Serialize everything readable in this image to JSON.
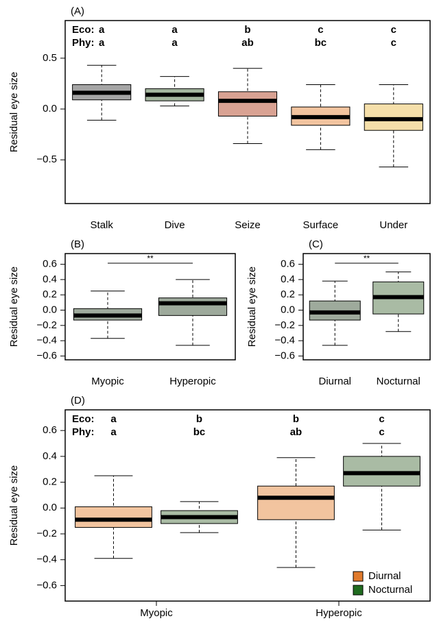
{
  "chart_data": [
    {
      "type": "box",
      "panel": "(A)",
      "ylabel": "Residual eye size",
      "categories": [
        "Stalk",
        "Dive",
        "Seize",
        "Surface",
        "Under"
      ],
      "box_colors": [
        "#a5a5a5",
        "#a3b59e",
        "#d9a293",
        "#f2c49f",
        "#f5dfaa"
      ],
      "series": [
        {
          "q1": [
            0.09,
            0.08,
            -0.07,
            -0.16,
            -0.21
          ],
          "median": [
            0.16,
            0.14,
            0.08,
            -0.08,
            -0.1
          ],
          "q3": [
            0.24,
            0.2,
            0.17,
            0.02,
            0.05
          ],
          "whisker_low": [
            -0.11,
            0.03,
            -0.34,
            -0.4,
            -0.57
          ],
          "whisker_high": [
            0.43,
            0.32,
            0.4,
            0.24,
            0.24
          ]
        }
      ],
      "letter_rows": [
        {
          "label": "Eco:",
          "letters": [
            "a",
            "a",
            "b",
            "c",
            "c"
          ]
        },
        {
          "label": "Phy:",
          "letters": [
            "a",
            "a",
            "ab",
            "bc",
            "c"
          ]
        }
      ],
      "ylim": [
        -0.93,
        0.87
      ],
      "yticks": [
        {
          "value": -0.5,
          "label": "−0.5"
        },
        {
          "value": 0,
          "label": "0.0"
        },
        0.5
      ]
    },
    {
      "type": "box",
      "panel": "(B)",
      "ylabel": "Residual eye size",
      "categories": [
        "Myopic",
        "Hyperopic"
      ],
      "box_colors": [
        "#9eaa9c",
        "#9eaa9c"
      ],
      "series": [
        {
          "q1": [
            -0.13,
            -0.07
          ],
          "median": [
            -0.07,
            0.09
          ],
          "q3": [
            0.02,
            0.16
          ],
          "whisker_low": [
            -0.37,
            -0.46
          ],
          "whisker_high": [
            0.25,
            0.4
          ]
        }
      ],
      "significance": "**",
      "ylim": [
        -0.65,
        0.74
      ],
      "yticks": [
        {
          "value": -0.6,
          "label": "−0.6"
        },
        {
          "value": -0.4,
          "label": "−0.4"
        },
        {
          "value": -0.2,
          "label": "−0.2"
        },
        {
          "value": 0,
          "label": "0.0"
        },
        0.2,
        0.4,
        0.6
      ]
    },
    {
      "type": "box",
      "panel": "(C)",
      "ylabel": "Residual eye size",
      "categories": [
        "Diurnal",
        "Nocturnal"
      ],
      "box_colors": [
        "#9eaa9c",
        "#a9bba4"
      ],
      "series": [
        {
          "q1": [
            -0.13,
            -0.05
          ],
          "median": [
            -0.03,
            0.17
          ],
          "q3": [
            0.12,
            0.37
          ],
          "whisker_low": [
            -0.46,
            -0.28
          ],
          "whisker_high": [
            0.38,
            0.5
          ]
        }
      ],
      "significance": "**",
      "ylim": [
        -0.65,
        0.74
      ],
      "yticks": [
        {
          "value": -0.6,
          "label": "−0.6"
        },
        {
          "value": -0.4,
          "label": "−0.4"
        },
        {
          "value": -0.2,
          "label": "−0.2"
        },
        {
          "value": 0,
          "label": "0.0"
        },
        0.2,
        0.4,
        0.6
      ]
    },
    {
      "type": "box",
      "panel": "(D)",
      "ylabel": "Residual eye size",
      "categories": [
        "Myopic",
        "Hyperopic"
      ],
      "series": [
        {
          "name": "Diurnal",
          "color": "#e07a2c",
          "box_color": "#f2c49f",
          "q1": [
            -0.15,
            -0.09
          ],
          "median": [
            -0.09,
            0.08
          ],
          "q3": [
            0.01,
            0.17
          ],
          "whisker_low": [
            -0.39,
            -0.46
          ],
          "whisker_high": [
            0.25,
            0.39
          ]
        },
        {
          "name": "Nocturnal",
          "color": "#1f6b1f",
          "box_color": "#a9bba4",
          "q1": [
            -0.12,
            0.17
          ],
          "median": [
            -0.07,
            0.27
          ],
          "q3": [
            -0.02,
            0.4
          ],
          "whisker_low": [
            -0.19,
            -0.17
          ],
          "whisker_high": [
            0.05,
            0.5
          ]
        }
      ],
      "letter_rows": [
        {
          "label": "Eco:",
          "letters": [
            "a",
            "b",
            "b",
            "c"
          ]
        },
        {
          "label": "Phy:",
          "letters": [
            "a",
            "bc",
            "ab",
            "c"
          ]
        }
      ],
      "legend": "bottom-right",
      "ylim": [
        -0.72,
        0.76
      ],
      "yticks": [
        {
          "value": -0.6,
          "label": "−0.6"
        },
        {
          "value": -0.4,
          "label": "−0.4"
        },
        {
          "value": -0.2,
          "label": "−0.2"
        },
        {
          "value": 0,
          "label": "0.0"
        },
        0.2,
        0.4,
        0.6
      ]
    }
  ]
}
